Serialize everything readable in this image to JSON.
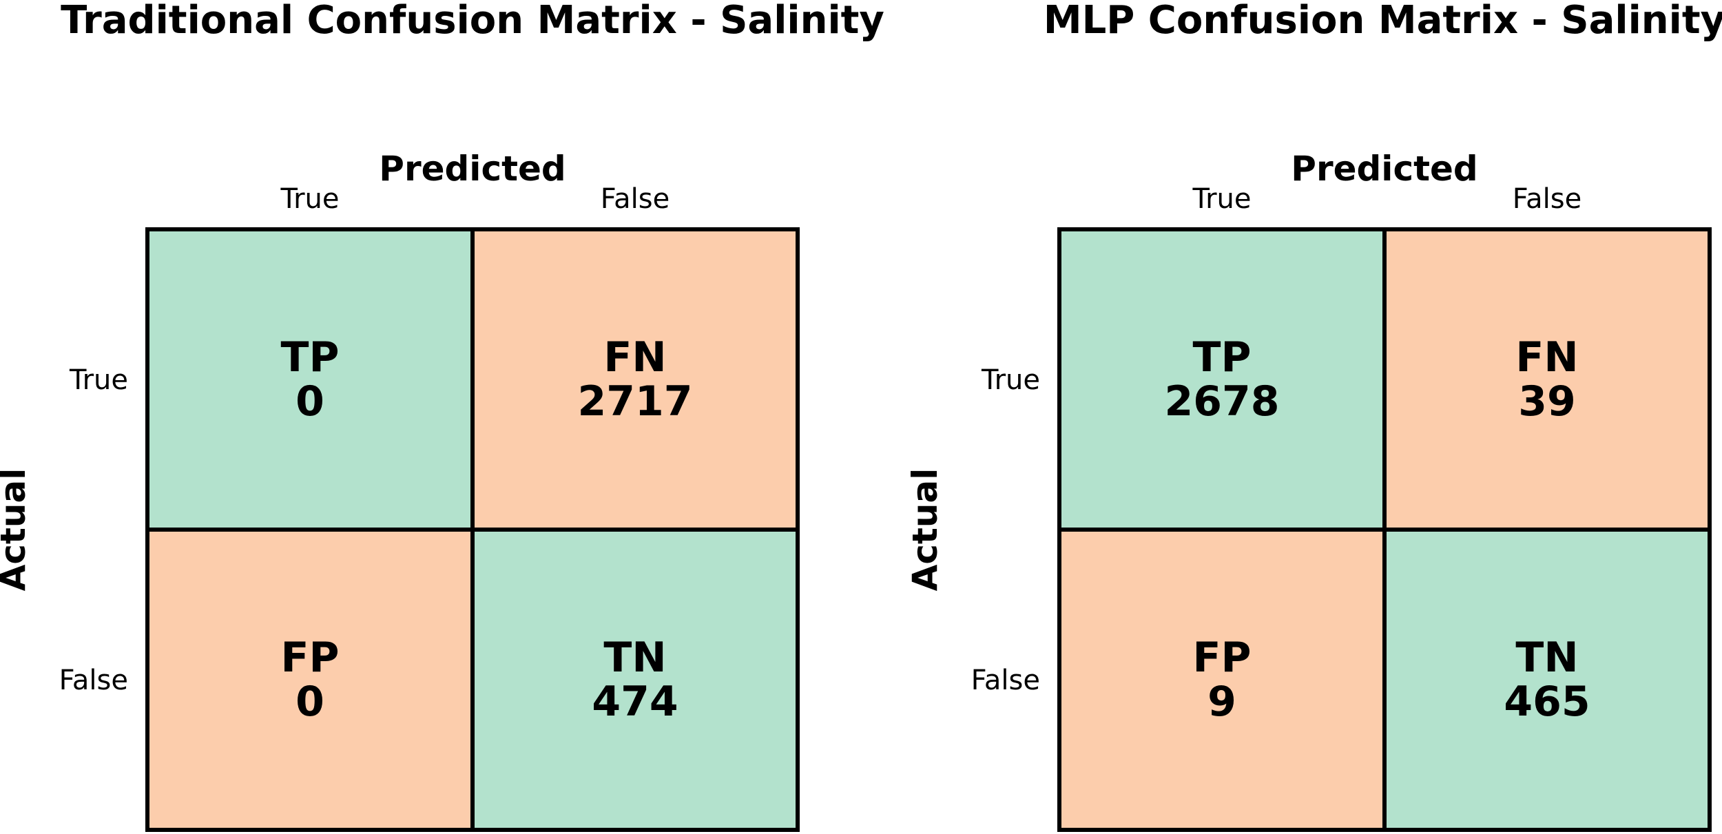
{
  "colors": {
    "correct": "#b3e2cd",
    "error": "#fccdac",
    "border": "#000000",
    "text": "#000000",
    "background": "#ffffff"
  },
  "chart_data": [
    {
      "type": "heatmap",
      "title": "Traditional Confusion Matrix - Salinity",
      "xlabel": "Predicted",
      "ylabel": "Actual",
      "x_categories": [
        "True",
        "False"
      ],
      "y_categories": [
        "True",
        "False"
      ],
      "cells": [
        [
          {
            "label": "TP",
            "value": 0
          },
          {
            "label": "FN",
            "value": 2717
          }
        ],
        [
          {
            "label": "FP",
            "value": 0
          },
          {
            "label": "TN",
            "value": 474
          }
        ]
      ]
    },
    {
      "type": "heatmap",
      "title": "MLP Confusion Matrix - Salinity",
      "xlabel": "Predicted",
      "ylabel": "Actual",
      "x_categories": [
        "True",
        "False"
      ],
      "y_categories": [
        "True",
        "False"
      ],
      "cells": [
        [
          {
            "label": "TP",
            "value": 2678
          },
          {
            "label": "FN",
            "value": 39
          }
        ],
        [
          {
            "label": "FP",
            "value": 9
          },
          {
            "label": "TN",
            "value": 465
          }
        ]
      ]
    }
  ]
}
